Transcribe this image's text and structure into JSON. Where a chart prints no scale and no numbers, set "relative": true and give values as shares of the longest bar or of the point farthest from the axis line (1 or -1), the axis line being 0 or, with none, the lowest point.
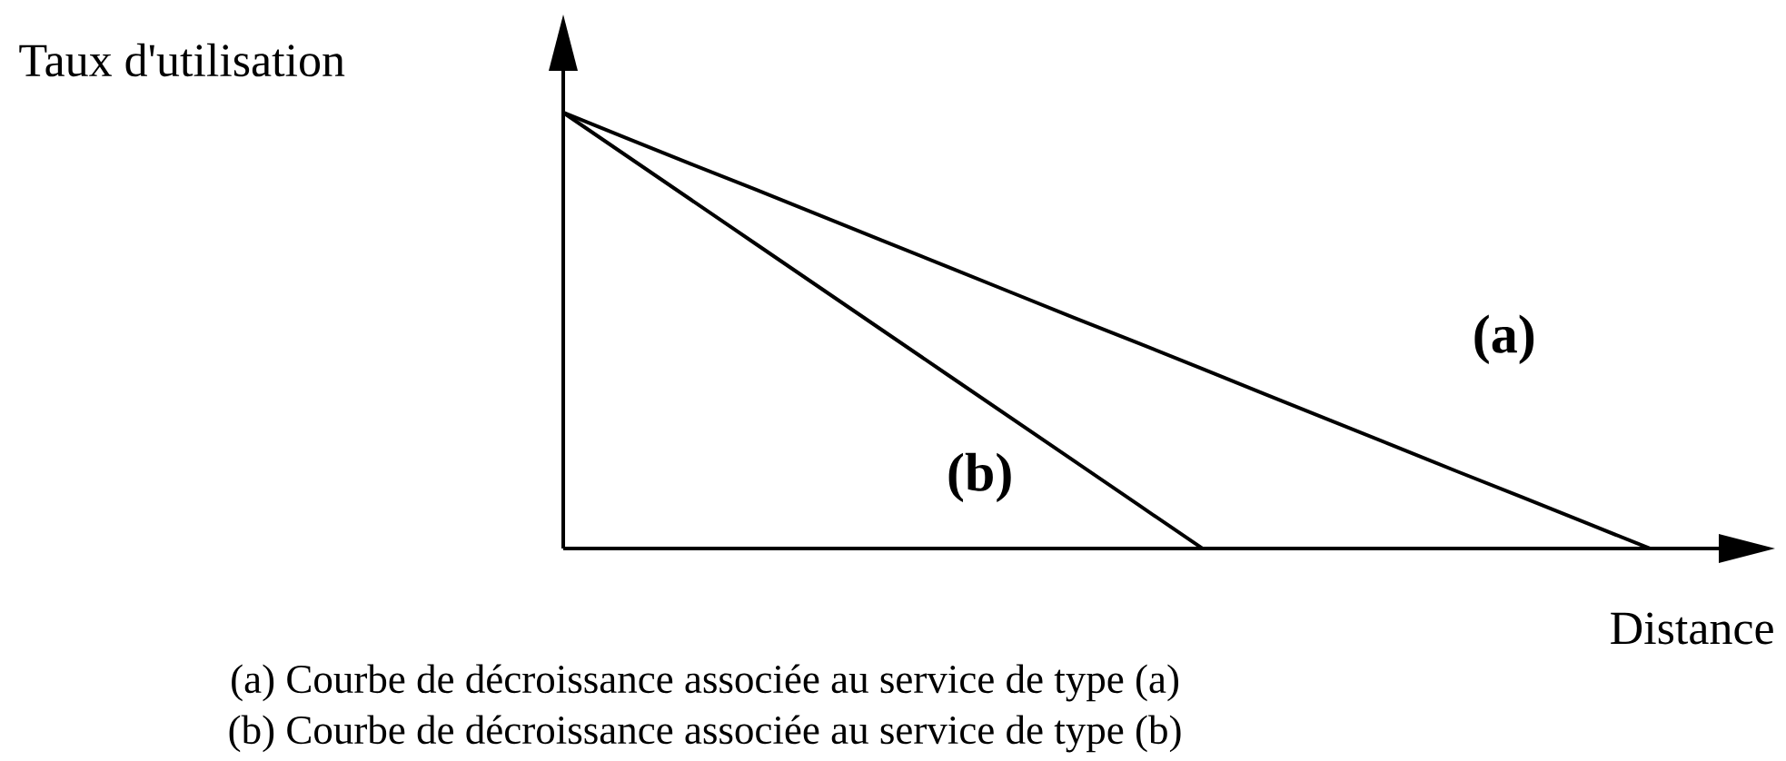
{
  "chart_data": {
    "type": "line",
    "relative": true,
    "xlabel": "Distance",
    "ylabel": "Taux d'utilisation",
    "categories": [
      null,
      null,
      null,
      null,
      null,
      null,
      null,
      null,
      null,
      null,
      null,
      null,
      null,
      null,
      null,
      null,
      null,
      null
    ],
    "series": [
      {
        "name": "(a)",
        "color": "#000000",
        "values": [
          1,
          0.941,
          0.882,
          0.824,
          0.765,
          0.706,
          0.647,
          0.588,
          0.529,
          0.471,
          0.412,
          0.353,
          0.294,
          0.235,
          0.176,
          0.118,
          0.059,
          0
        ]
      },
      {
        "name": "(b)",
        "color": "#000000",
        "values": [
          1,
          0.9,
          0.8,
          0.7,
          0.6,
          0.5,
          0.4,
          0.3,
          0.2,
          0.1,
          0,
          null,
          null,
          null,
          null,
          null,
          null,
          null
        ]
      }
    ],
    "annotations": [
      "(a) Courbe de décroissance associée au service de type (a)",
      "(b) Courbe de décroissance associée au service de type (b)"
    ]
  }
}
